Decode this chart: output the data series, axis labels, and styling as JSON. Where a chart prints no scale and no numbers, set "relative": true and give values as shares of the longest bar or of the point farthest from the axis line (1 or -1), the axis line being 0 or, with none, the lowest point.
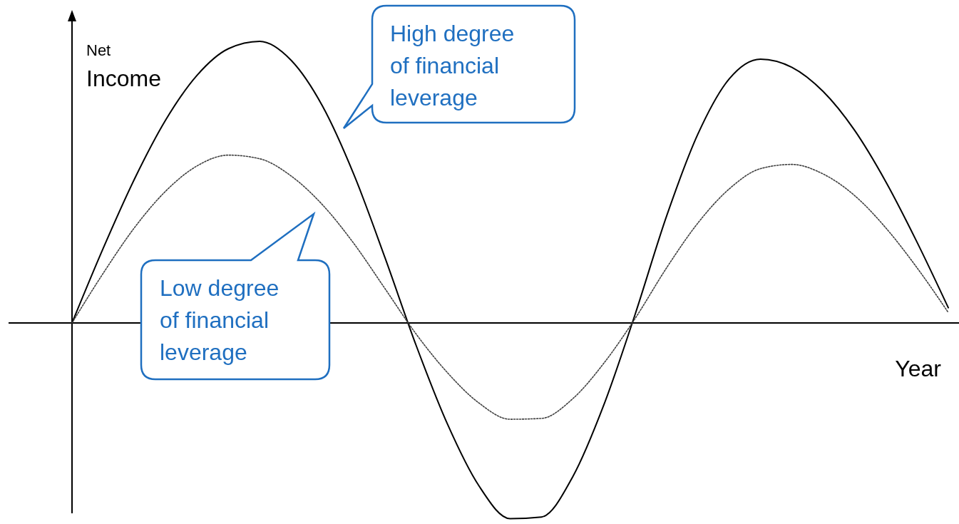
{
  "chart_data": {
    "type": "line",
    "relative": true,
    "xlabel": "Year",
    "ylabel": "Net Income",
    "categories": [
      null,
      null,
      null,
      null,
      null,
      null,
      null,
      null,
      null,
      null,
      null,
      null,
      null,
      null,
      null,
      null,
      null,
      null,
      null,
      null,
      null,
      null,
      null,
      null,
      null,
      null,
      null,
      null,
      null
    ],
    "series": [
      {
        "name": "High degree of financial leverage",
        "color": "#000000",
        "line_style": "solid",
        "values": [
          0,
          0.266,
          0.512,
          0.722,
          0.88,
          0.974,
          1,
          0.933,
          0.771,
          0.529,
          0.232,
          -0.081,
          -0.36,
          -0.578,
          -0.695,
          -0.689,
          -0.546,
          -0.289,
          0.033,
          0.38,
          0.671,
          0.867,
          0.937,
          0.908,
          0.822,
          0.685,
          0.502,
          0.287,
          0.054
        ]
      },
      {
        "name": "Low degree of financial leverage",
        "color": "#404040",
        "line_style": "dotted",
        "values": [
          0,
          0.177,
          0.339,
          0.469,
          0.558,
          0.596,
          0.583,
          0.522,
          0.42,
          0.283,
          0.122,
          -0.04,
          -0.177,
          -0.284,
          -0.342,
          -0.339,
          -0.269,
          -0.142,
          0.017,
          0.196,
          0.355,
          0.476,
          0.548,
          0.563,
          0.529,
          0.453,
          0.338,
          0.196,
          0.037
        ]
      }
    ]
  }
}
